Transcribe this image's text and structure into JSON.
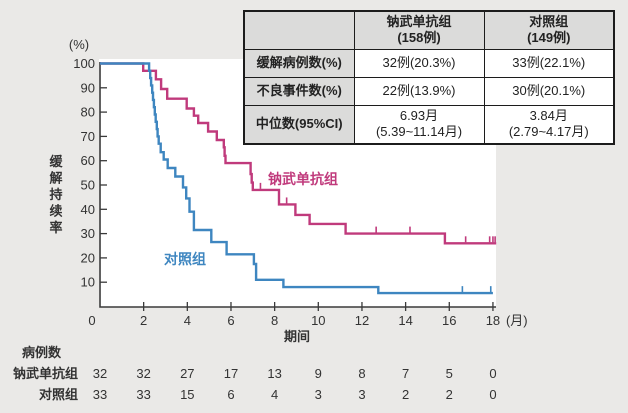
{
  "background_color": "#eae9e7",
  "accent_colors": {
    "nivolumab_pink": "#c03a7c",
    "control_blue": "#3e86c0"
  },
  "summary_table": {
    "corner": "",
    "headers": [
      [
        "钠武单抗组",
        "(158例)"
      ],
      [
        "对照组",
        "(149例)"
      ]
    ],
    "rows": [
      {
        "label": "缓解病例数(%)",
        "c1": "32例(20.3%)",
        "c2": "33例(22.1%)"
      },
      {
        "label": "不良事件数(%)",
        "c1": "22例(13.9%)",
        "c2": "30例(20.1%)"
      },
      {
        "label": "中位数(95%CI)",
        "c1a": "6.93月",
        "c1b": "(5.39~11.14月)",
        "c2a": "3.84月",
        "c2b": "(2.79~4.17月)"
      }
    ]
  },
  "chart_data": {
    "type": "line",
    "subtype": "kaplan-meier-step",
    "title": "",
    "ylabel": "缓解持续率",
    "y_unit": "(%)",
    "xlabel": "期间",
    "x_unit": "(月)",
    "xlim": [
      0,
      18
    ],
    "ylim": [
      0,
      100
    ],
    "xticks": [
      0,
      2,
      4,
      6,
      8,
      10,
      12,
      14,
      16,
      18
    ],
    "yticks": [
      10,
      20,
      30,
      40,
      50,
      60,
      70,
      80,
      90,
      100
    ],
    "grid": false,
    "legend_position": "inline-curve-labels",
    "series": [
      {
        "name": "钠武单抗组",
        "color": "#c03a7c",
        "steps": [
          [
            0,
            100
          ],
          [
            1.98,
            97
          ],
          [
            2.56,
            93.5
          ],
          [
            2.8,
            89.5
          ],
          [
            3.08,
            85.5
          ],
          [
            3.97,
            81.5
          ],
          [
            4.3,
            78.5
          ],
          [
            4.5,
            75.5
          ],
          [
            4.95,
            72
          ],
          [
            5.35,
            68.5
          ],
          [
            5.67,
            65.5
          ],
          [
            5.71,
            62
          ],
          [
            5.75,
            59
          ],
          [
            6.9,
            54.5
          ],
          [
            6.95,
            51
          ],
          [
            7.0,
            48
          ],
          [
            8.2,
            42
          ],
          [
            8.95,
            37.7
          ],
          [
            9.6,
            34
          ],
          [
            11.25,
            30
          ],
          [
            15.8,
            26
          ]
        ],
        "end_month": 18.15,
        "censor_months": [
          7.35,
          8.55,
          12.65,
          14.2,
          16.75,
          17.85,
          18.0,
          18.1
        ]
      },
      {
        "name": "对照组",
        "color": "#3e86c0",
        "steps": [
          [
            0,
            100
          ],
          [
            2.25,
            97
          ],
          [
            2.3,
            94
          ],
          [
            2.34,
            91
          ],
          [
            2.39,
            88
          ],
          [
            2.43,
            85
          ],
          [
            2.47,
            82
          ],
          [
            2.51,
            79
          ],
          [
            2.55,
            76
          ],
          [
            2.6,
            73
          ],
          [
            2.64,
            70
          ],
          [
            2.69,
            67
          ],
          [
            2.78,
            63.5
          ],
          [
            2.92,
            60.5
          ],
          [
            3.1,
            57
          ],
          [
            3.45,
            53.5
          ],
          [
            3.8,
            49
          ],
          [
            3.95,
            44.5
          ],
          [
            4.1,
            39
          ],
          [
            4.3,
            31.5
          ],
          [
            5.1,
            26.5
          ],
          [
            5.8,
            21.5
          ],
          [
            7.05,
            17.5
          ],
          [
            7.15,
            11
          ],
          [
            8.4,
            8
          ],
          [
            12.75,
            5.5
          ]
        ],
        "end_month": 18.0,
        "censor_months": [
          16.6,
          17.9
        ]
      }
    ]
  },
  "at_risk": {
    "title": "病例数",
    "rows": [
      {
        "label": "钠武单抗组",
        "values": [
          32,
          32,
          27,
          17,
          13,
          9,
          8,
          7,
          5,
          0
        ]
      },
      {
        "label": "对照组",
        "values": [
          33,
          33,
          15,
          6,
          4,
          3,
          3,
          2,
          2,
          0
        ]
      }
    ]
  }
}
